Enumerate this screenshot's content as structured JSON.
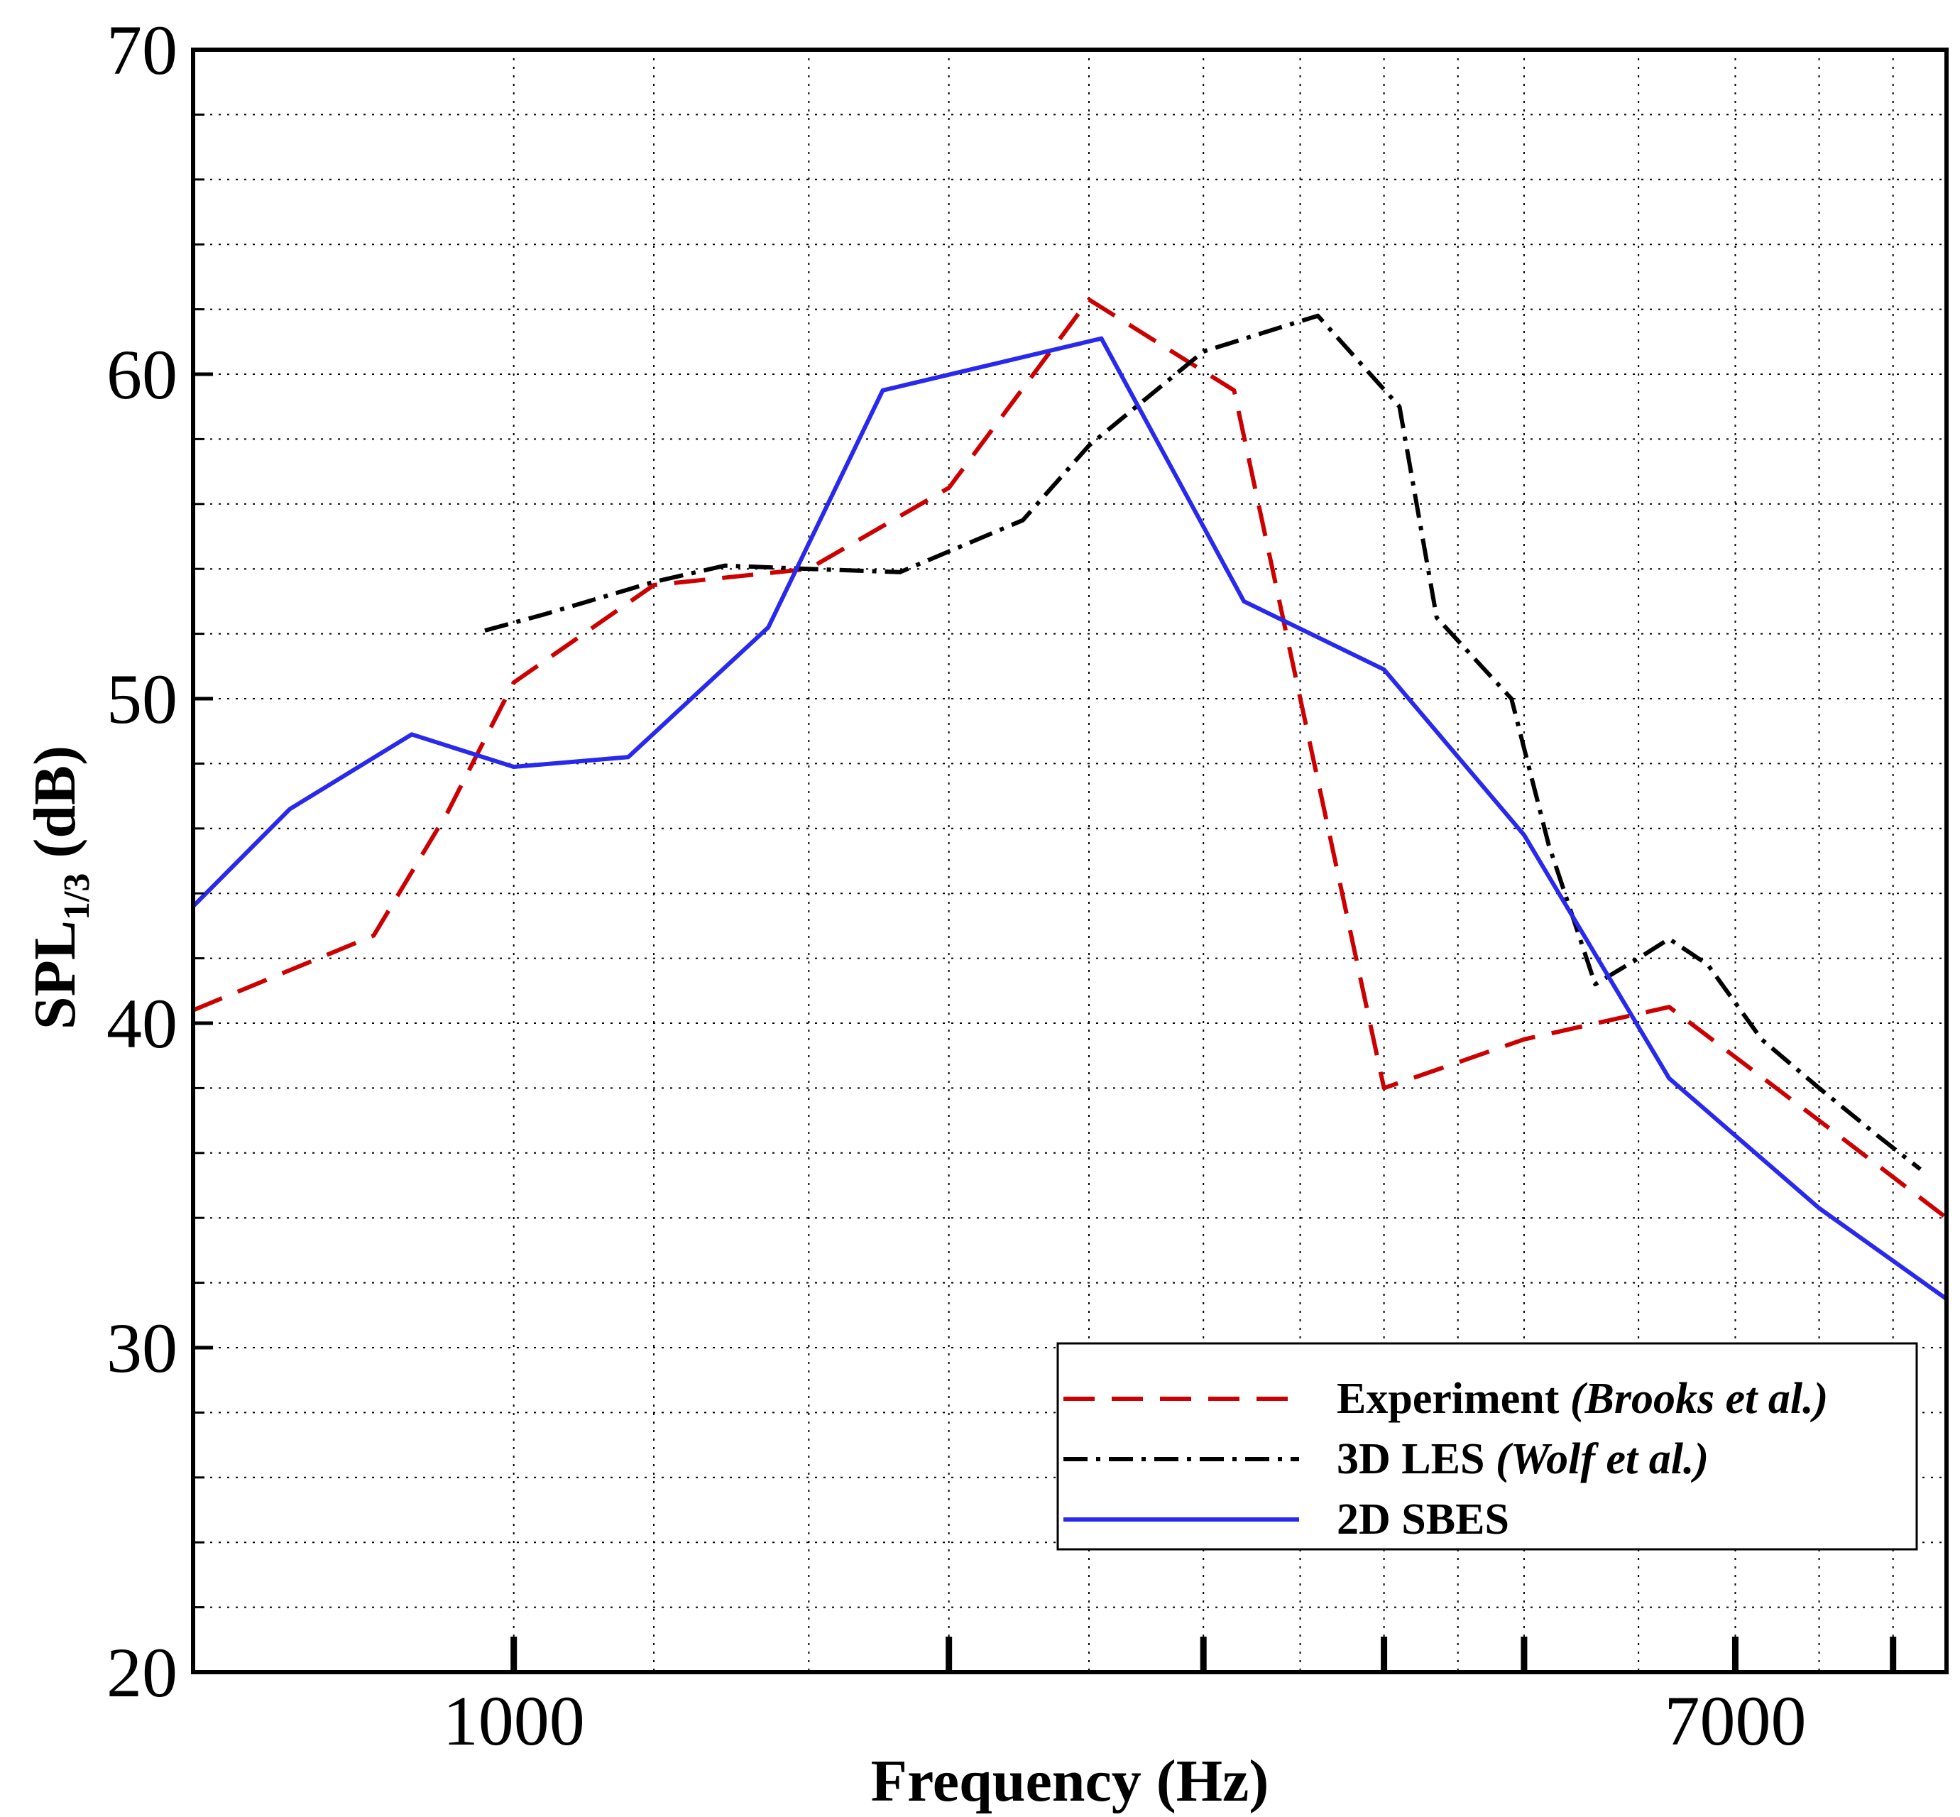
{
  "chart_data": {
    "type": "line",
    "title": "",
    "xlabel": "Frequency (Hz)",
    "ylabel_main": "SPL",
    "ylabel_sub": "1/3",
    "ylabel_tail": " (dB)",
    "xscale": "log",
    "xlim": [
      600,
      9800
    ],
    "ylim": [
      20,
      70
    ],
    "x_tick_labels": [
      {
        "value": 1000,
        "label": "1000"
      },
      {
        "value": 7000,
        "label": "7000"
      }
    ],
    "x_major_ticks": [
      1000,
      2000,
      3000,
      4000,
      5000,
      7000,
      9000
    ],
    "x_grid_lines": [
      1000,
      1250,
      1600,
      2000,
      2500,
      3000,
      3500,
      4000,
      4500,
      5000,
      6000,
      7000,
      8000,
      9000
    ],
    "y_ticks": [
      20,
      30,
      40,
      50,
      60,
      70
    ],
    "y_minor_step": 2,
    "grid": true,
    "legend_position": "bottom-right",
    "series": [
      {
        "name": "Experiment",
        "name_italic": "(Brooks et al.)",
        "color": "#cc0000",
        "style": "dashed",
        "x": [
          600,
          800,
          900,
          1000,
          1250,
          1600,
          2000,
          2500,
          3150,
          4000,
          5000,
          6300,
          8000,
          9800
        ],
        "y": [
          40.4,
          42.7,
          46.5,
          50.5,
          53.5,
          54.0,
          56.5,
          62.3,
          59.5,
          38.0,
          39.5,
          40.5,
          37.0,
          34.0
        ]
      },
      {
        "name": "3D LES",
        "name_italic": "(Wolf et al.)",
        "color": "#000000",
        "style": "dashdot",
        "x": [
          955,
          1050,
          1250,
          1400,
          1600,
          1850,
          2250,
          2500,
          3000,
          3600,
          4100,
          4350,
          4900,
          5200,
          5600,
          6000,
          6300,
          6700,
          7300,
          8000,
          8800,
          9400
        ],
        "y": [
          52.1,
          52.6,
          53.6,
          54.1,
          54.0,
          53.9,
          55.5,
          57.8,
          60.7,
          61.8,
          59.0,
          52.5,
          50.0,
          45.5,
          41.2,
          42.0,
          42.6,
          41.8,
          39.5,
          38.0,
          36.5,
          35.5
        ]
      },
      {
        "name": "2D SBES",
        "name_italic": "",
        "color": "#2929ee",
        "style": "solid",
        "x": [
          600,
          700,
          850,
          1000,
          1200,
          1500,
          1800,
          2550,
          3200,
          4000,
          5000,
          6300,
          8000,
          9800
        ],
        "y": [
          43.6,
          46.6,
          48.9,
          47.9,
          48.2,
          52.2,
          59.5,
          61.1,
          53.0,
          50.9,
          45.8,
          38.3,
          34.3,
          31.5
        ]
      }
    ]
  }
}
